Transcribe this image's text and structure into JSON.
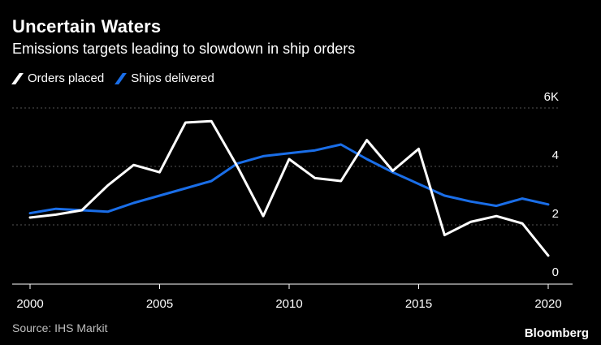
{
  "header": {
    "title": "Uncertain Waters",
    "subtitle": "Emissions targets leading to slowdown in ship orders"
  },
  "footer": {
    "source": "Source: IHS Markit",
    "brand": "Bloomberg"
  },
  "colors": {
    "background": "#000000",
    "orders": "#ffffff",
    "deliveries": "#1a6ee8",
    "grid": "#555555",
    "text": "#ffffff"
  },
  "chart_data": {
    "type": "line",
    "title": "Uncertain Waters",
    "subtitle": "Emissions targets leading to slowdown in ship orders",
    "xlabel": "",
    "ylabel": "",
    "x": [
      2000,
      2001,
      2002,
      2003,
      2004,
      2005,
      2006,
      2007,
      2008,
      2009,
      2010,
      2011,
      2012,
      2013,
      2014,
      2015,
      2016,
      2017,
      2018,
      2019,
      2020
    ],
    "xlim": [
      2000,
      2020
    ],
    "ylim": [
      0,
      6
    ],
    "y_unit": "K",
    "x_ticks": [
      "2000",
      "2005",
      "2010",
      "2015",
      "2020"
    ],
    "y_ticks": [
      "6K",
      "4",
      "2",
      "0"
    ],
    "legend_position": "top-left",
    "grid": true,
    "series": [
      {
        "name": "Orders placed",
        "color": "#ffffff",
        "values": [
          2.25,
          2.35,
          2.5,
          3.35,
          4.05,
          3.8,
          5.5,
          5.55,
          4.0,
          2.3,
          4.25,
          3.6,
          3.5,
          4.9,
          3.85,
          4.6,
          1.65,
          2.1,
          2.3,
          2.05,
          0.95
        ]
      },
      {
        "name": "Ships delivered",
        "color": "#1a6ee8",
        "values": [
          2.4,
          2.55,
          2.5,
          2.45,
          2.75,
          3.0,
          3.25,
          3.5,
          4.1,
          4.35,
          4.45,
          4.55,
          4.75,
          4.25,
          3.8,
          3.4,
          3.0,
          2.8,
          2.65,
          2.9,
          2.7
        ]
      }
    ]
  }
}
